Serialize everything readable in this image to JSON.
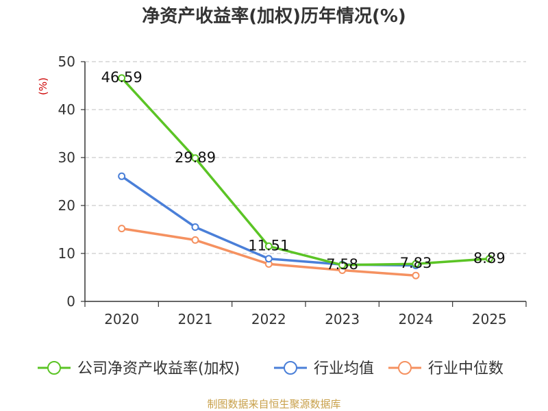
{
  "chart_data": {
    "type": "line",
    "title": "净资产收益率(加权)历年情况(%)",
    "ylabel": "(%)",
    "xlabel": "",
    "categories": [
      "2020",
      "2021",
      "2022",
      "2023",
      "2024",
      "2025"
    ],
    "ylim": [
      0,
      50
    ],
    "yticks": [
      0,
      10,
      20,
      30,
      40,
      50
    ],
    "grid": true,
    "legend_position": "bottom",
    "series": [
      {
        "name": "公司净资产收益率(加权)",
        "color": "#5bc425",
        "values": [
          46.59,
          29.89,
          11.51,
          7.58,
          7.83,
          8.89
        ],
        "labels": [
          "46.59",
          "29.89",
          "11.51",
          "7.58",
          "7.83",
          "8.89"
        ]
      },
      {
        "name": "行业均值",
        "color": "#4a7fd8",
        "values": [
          26.1,
          15.5,
          8.9,
          7.7,
          7.5,
          null
        ]
      },
      {
        "name": "行业中位数",
        "color": "#f59160",
        "values": [
          15.2,
          12.8,
          7.8,
          6.5,
          5.4,
          null
        ]
      }
    ],
    "source": "制图数据来自恒生聚源数据库"
  }
}
